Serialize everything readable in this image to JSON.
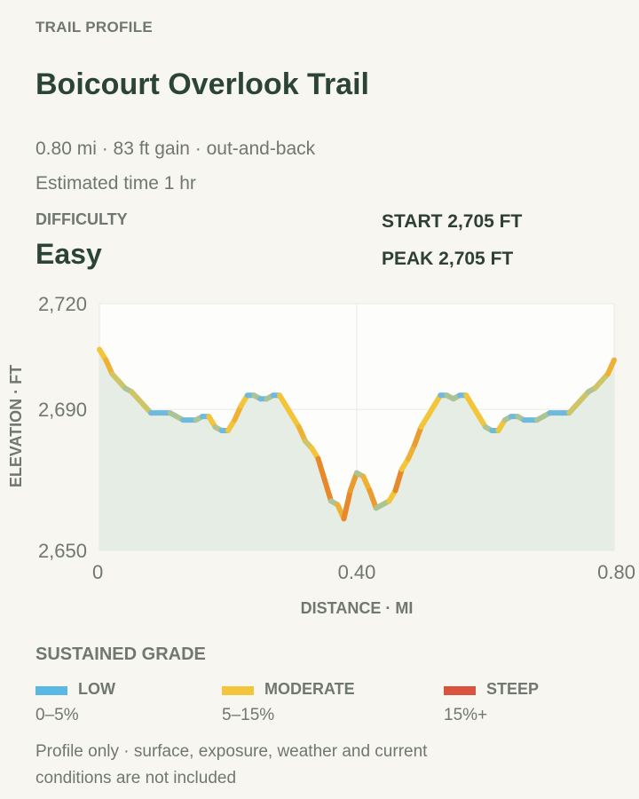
{
  "header": {
    "eyebrow": "TRAIL PROFILE",
    "title": "Boicourt Overlook Trail",
    "summary": "0.80 mi · 83 ft gain · out-and-back",
    "estimate": "Estimated time 1 hr",
    "difficulty_label": "DIFFICULTY",
    "difficulty_value": "Easy",
    "start": "START 2,705 FT",
    "peak": "PEAK 2,705 FT"
  },
  "chart_data": {
    "type": "line",
    "ylabel": "ELEVATION · FT",
    "xlabel": "DISTANCE · MI",
    "xlim": [
      0,
      0.8
    ],
    "ylim": [
      2650,
      2720
    ],
    "x_ticks": [
      {
        "value": 0,
        "label": "0"
      },
      {
        "value": 0.4,
        "label": "0.40"
      },
      {
        "value": 0.8,
        "label": "0.80"
      }
    ],
    "y_ticks": [
      {
        "value": 2720,
        "label": "2,720"
      },
      {
        "value": 2690,
        "label": "2,690"
      },
      {
        "value": 2650,
        "label": "2,650"
      }
    ],
    "series": [
      {
        "x": [
          0,
          0.01,
          0.02,
          0.03,
          0.04,
          0.05,
          0.06,
          0.07,
          0.08,
          0.09,
          0.1,
          0.11,
          0.12,
          0.13,
          0.14,
          0.15,
          0.16,
          0.17,
          0.18,
          0.19,
          0.2,
          0.21,
          0.22,
          0.23,
          0.24,
          0.25,
          0.26,
          0.27,
          0.28,
          0.29,
          0.3,
          0.31,
          0.32,
          0.33,
          0.34,
          0.35,
          0.36,
          0.37,
          0.38,
          0.39,
          0.4,
          0.41,
          0.42,
          0.43,
          0.44,
          0.45,
          0.46,
          0.47,
          0.48,
          0.49,
          0.5,
          0.51,
          0.52,
          0.53,
          0.54,
          0.55,
          0.56,
          0.57,
          0.58,
          0.59,
          0.6,
          0.61,
          0.62,
          0.63,
          0.64,
          0.65,
          0.66,
          0.67,
          0.68,
          0.69,
          0.7,
          0.71,
          0.72,
          0.73,
          0.74,
          0.75,
          0.76,
          0.77,
          0.78,
          0.79,
          0.8
        ],
        "y": [
          2707,
          2704,
          2700,
          2698,
          2696,
          2695,
          2693,
          2691,
          2689,
          2689,
          2689,
          2689,
          2688,
          2687,
          2687,
          2687,
          2688,
          2688,
          2685,
          2684,
          2684,
          2687,
          2691,
          2694,
          2694,
          2693,
          2693,
          2694,
          2694,
          2691,
          2688,
          2685,
          2681,
          2679,
          2676,
          2670,
          2664,
          2663,
          2659,
          2667,
          2672,
          2671,
          2667,
          2662,
          2663,
          2664,
          2667,
          2673,
          2676,
          2680,
          2685,
          2688,
          2691,
          2694,
          2694,
          2693,
          2694,
          2694,
          2691,
          2688,
          2685,
          2684,
          2684,
          2687,
          2688,
          2688,
          2687,
          2687,
          2687,
          2688,
          2689,
          2689,
          2689,
          2689,
          2691,
          2693,
          2695,
          2696,
          2698,
          2700,
          2704
        ]
      }
    ],
    "grid": true
  },
  "legend": {
    "title": "SUSTAINED GRADE",
    "items": [
      {
        "label": "LOW",
        "range": "0–5%",
        "color": "#5ab8e4"
      },
      {
        "label": "MODERATE",
        "range": "5–15%",
        "color": "#f2c53a"
      },
      {
        "label": "STEEP",
        "range": "15%+",
        "color": "#d9533f"
      }
    ]
  },
  "note": "Profile only · surface, exposure, weather and current conditions are not included",
  "colors": {
    "background": "#f7f6f1",
    "plot_bg": "#fdfdfb",
    "area_fill": "#e5ede5",
    "grid": "#e9e9e5",
    "steep_dark": "#e8882b"
  }
}
